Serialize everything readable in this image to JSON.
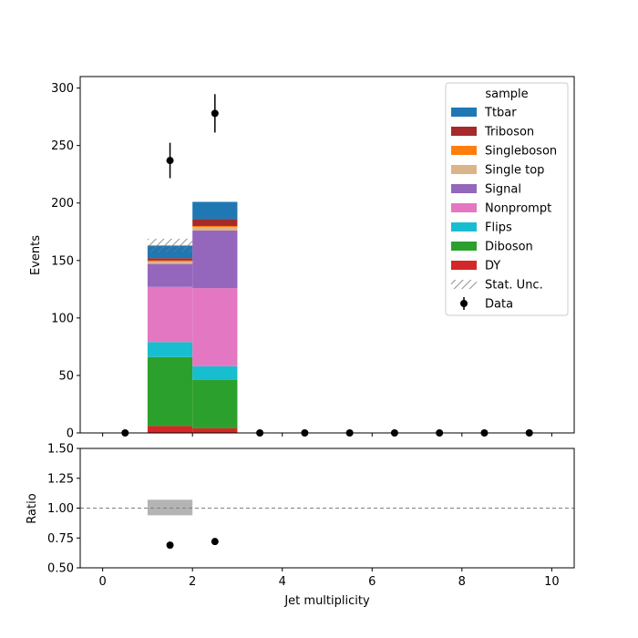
{
  "chart_data": {
    "type": "bar",
    "stacked": true,
    "xlabel": "Jet multiplicity",
    "ylabel": "Events",
    "xlim": [
      -0.5,
      10.5
    ],
    "ylim": [
      0,
      310
    ],
    "xticks": [
      0,
      2,
      4,
      6,
      8,
      10
    ],
    "yticks": [
      0,
      50,
      100,
      150,
      200,
      250,
      300
    ],
    "bin_edges": [
      0,
      1,
      2,
      3,
      4,
      5,
      6,
      7,
      8,
      9,
      10
    ],
    "series": [
      {
        "name": "DY",
        "color": "#d62728",
        "values": [
          0,
          6,
          4,
          0,
          0,
          0,
          0,
          0,
          0,
          0
        ]
      },
      {
        "name": "Diboson",
        "color": "#2ca02c",
        "values": [
          0,
          60,
          42,
          0,
          0,
          0,
          0,
          0,
          0,
          0
        ]
      },
      {
        "name": "Flips",
        "color": "#17becf",
        "values": [
          0,
          13,
          12,
          0,
          0,
          0,
          0,
          0,
          0,
          0
        ]
      },
      {
        "name": "Nonprompt",
        "color": "#e377c2",
        "values": [
          0,
          48,
          68,
          0,
          0,
          0,
          0,
          0,
          0,
          0
        ]
      },
      {
        "name": "Signal",
        "color": "#9467bd",
        "values": [
          0,
          20,
          50,
          0,
          0,
          0,
          0,
          0,
          0,
          0
        ]
      },
      {
        "name": "Single top",
        "color": "#dbb58a",
        "values": [
          0,
          2,
          3,
          0,
          0,
          0,
          0,
          0,
          0,
          0
        ]
      },
      {
        "name": "Singleboson",
        "color": "#ff7f0e",
        "values": [
          0,
          1,
          1,
          0,
          0,
          0,
          0,
          0,
          0,
          0
        ]
      },
      {
        "name": "Triboson",
        "color": "#a52a2a",
        "values": [
          0,
          2,
          6,
          0,
          0,
          0,
          0,
          0,
          0,
          0
        ]
      },
      {
        "name": "Ttbar",
        "color": "#1f77b4",
        "values": [
          0,
          11,
          15,
          0,
          0,
          0,
          0,
          0,
          0,
          0
        ]
      }
    ],
    "stat_unc": {
      "label": "Stat. Unc.",
      "values": [
        0,
        6,
        0,
        0,
        0,
        0,
        0,
        0,
        0,
        0
      ]
    },
    "data": {
      "label": "Data",
      "x": [
        0.5,
        1.5,
        2.5,
        3.5,
        4.5,
        5.5,
        6.5,
        7.5,
        8.5,
        9.5
      ],
      "y": [
        0,
        237,
        278,
        0,
        0,
        0,
        0,
        0,
        0,
        0
      ],
      "yerr": [
        0,
        15.4,
        16.7,
        0,
        0,
        0,
        0,
        0,
        0,
        0
      ]
    },
    "legend": {
      "title": "sample",
      "placement": "top-right",
      "order": [
        "Ttbar",
        "Triboson",
        "Singleboson",
        "Single top",
        "Signal",
        "Nonprompt",
        "Flips",
        "Diboson",
        "DY",
        "Stat. Unc.",
        "Data"
      ]
    },
    "ratio": {
      "ylabel": "Ratio",
      "ylim": [
        0.5,
        1.5
      ],
      "yticks": [
        0.5,
        0.75,
        1.0,
        1.25,
        1.5
      ],
      "ytick_labels": [
        "0.50",
        "0.75",
        "1.00",
        "1.25",
        "1.50"
      ],
      "reference_line": 1.0,
      "unc_band": [
        {
          "x0": 1,
          "x1": 2,
          "lo": 0.94,
          "hi": 1.07
        }
      ],
      "points": {
        "x": [
          1.5,
          2.5
        ],
        "y": [
          0.69,
          0.72
        ]
      }
    }
  }
}
